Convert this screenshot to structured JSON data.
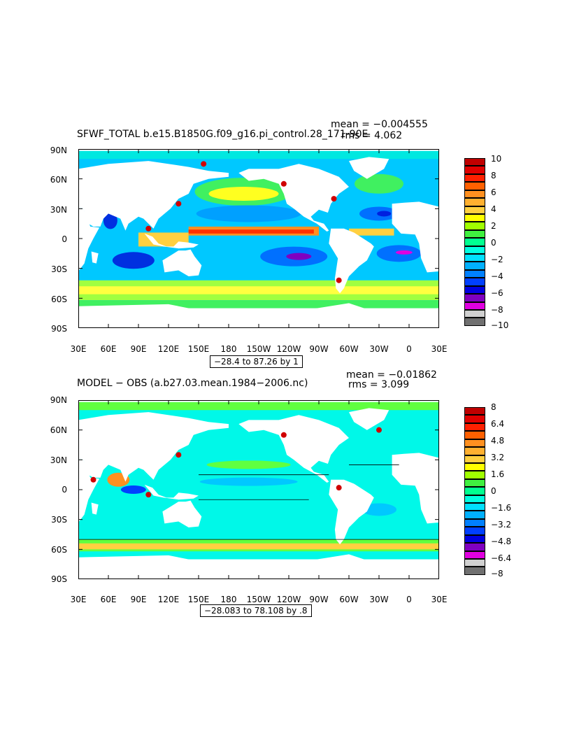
{
  "panels": [
    {
      "title": "SFWF_TOTAL b.e15.B1850G.f09_g16.pi_control.28_171-90E",
      "mean_label": "mean = −0.004555",
      "rms_label": "rms = 4.062",
      "contour_info": "−28.4 to 87.26 by 1",
      "colorbar": {
        "labels": [
          "10",
          "8",
          "6",
          "4",
          "2",
          "0",
          "−2",
          "−4",
          "−6",
          "−8",
          "−10"
        ],
        "colors": [
          "#c00000",
          "#e00000",
          "#ff2000",
          "#ff6000",
          "#ff9020",
          "#ffb030",
          "#ffd040",
          "#ffff00",
          "#a0ff00",
          "#40f040",
          "#00ff90",
          "#00ffe0",
          "#00e0ff",
          "#00b0ff",
          "#0080ff",
          "#0040ff",
          "#0000e0",
          "#8000c0",
          "#e000e0",
          "#d0d0d0",
          "#707070"
        ]
      }
    },
    {
      "title": "MODEL − OBS (a.b27.03.mean.1984−2006.nc)",
      "mean_label": "mean = −0.01862",
      "rms_label": "rms = 3.099",
      "contour_info": "−28.083 to 78.108 by .8",
      "colorbar": {
        "labels": [
          "8",
          "6.4",
          "4.8",
          "3.2",
          "1.6",
          "0",
          "−1.6",
          "−3.2",
          "−4.8",
          "−6.4",
          "−8"
        ],
        "colors": [
          "#c00000",
          "#e00000",
          "#ff2000",
          "#ff6000",
          "#ff9020",
          "#ffb030",
          "#ffd040",
          "#ffff00",
          "#a0ff00",
          "#40f040",
          "#00ff90",
          "#00ffe0",
          "#00e0ff",
          "#00b0ff",
          "#0080ff",
          "#0040ff",
          "#0000e0",
          "#8000c0",
          "#e000e0",
          "#d0d0d0",
          "#707070"
        ]
      }
    }
  ],
  "axes": {
    "lat_labels": [
      "90N",
      "60N",
      "30N",
      "0",
      "30S",
      "60S",
      "90S"
    ],
    "lon_labels": [
      "30E",
      "60E",
      "90E",
      "120E",
      "150E",
      "180",
      "150W",
      "120W",
      "90W",
      "60W",
      "30W",
      "0",
      "30E"
    ]
  }
}
